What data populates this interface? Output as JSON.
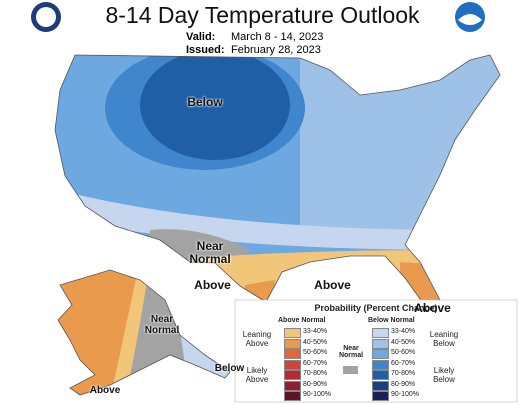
{
  "header": {
    "title": "8-14 Day Temperature Outlook",
    "valid_label": "Valid:",
    "valid": "March 8 - 14, 2023",
    "issued_label": "Issued:",
    "issued": "February 28, 2023"
  },
  "map_labels": [
    "Below",
    "Near Normal",
    "Above",
    "Above",
    "Above",
    "Near Normal",
    "Above",
    "Below"
  ],
  "legend": {
    "title": "Probability (Percent Chance)",
    "above_heading": "Above Normal",
    "near_heading": "Near Normal",
    "below_heading": "Below Normal",
    "near_color": "#a3a3a3",
    "above_groups": [
      "Leaning Above",
      "Likely Above"
    ],
    "below_groups": [
      "Leaning Below",
      "Likely Below"
    ],
    "above": [
      {
        "label": "33-40%",
        "color": "#f2c679"
      },
      {
        "label": "40-50%",
        "color": "#e99a4d"
      },
      {
        "label": "50-60%",
        "color": "#e0683a"
      },
      {
        "label": "60-70%",
        "color": "#d0423a"
      },
      {
        "label": "70-80%",
        "color": "#b52a35"
      },
      {
        "label": "80-90%",
        "color": "#8e1f33"
      },
      {
        "label": "90-100%",
        "color": "#5e1426"
      }
    ],
    "below": [
      {
        "label": "33-40%",
        "color": "#c7d6ef"
      },
      {
        "label": "40-50%",
        "color": "#9ec1e8"
      },
      {
        "label": "50-60%",
        "color": "#6ea8e0"
      },
      {
        "label": "60-70%",
        "color": "#3f86cc"
      },
      {
        "label": "70-80%",
        "color": "#1f5fa6"
      },
      {
        "label": "80-90%",
        "color": "#1c3f85"
      },
      {
        "label": "90-100%",
        "color": "#1b1f5e"
      }
    ]
  }
}
